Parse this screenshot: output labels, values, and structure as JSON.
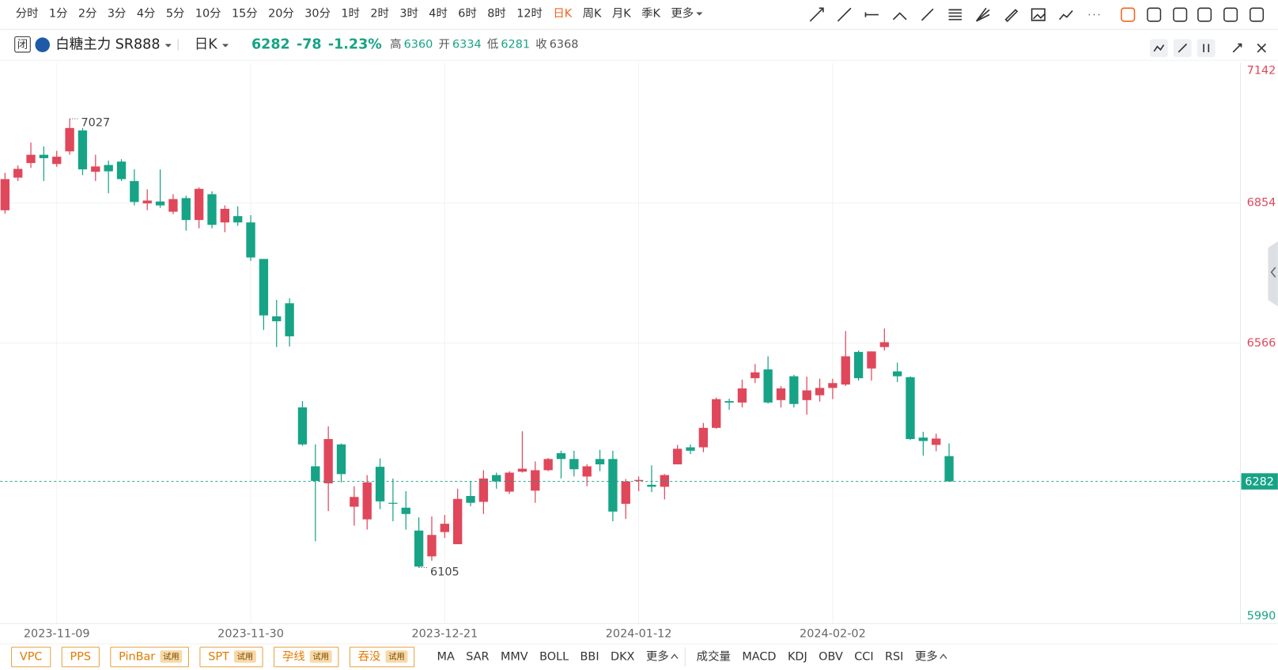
{
  "toolbar": {
    "periods": [
      "分时",
      "1分",
      "2分",
      "3分",
      "4分",
      "5分",
      "10分",
      "15分",
      "20分",
      "30分",
      "1时",
      "2时",
      "3时",
      "4时",
      "6时",
      "8时",
      "12时",
      "日K",
      "周K",
      "月K",
      "季K"
    ],
    "active": 17,
    "more": "更多"
  },
  "header": {
    "status": "闭",
    "symbol": "白糖主力 SR888",
    "period": "日K",
    "change": "-78",
    "pct": "-1.23%",
    "high_label": "高",
    "open_label": "开",
    "low_label": "低",
    "prev_label": "收",
    "prev_close": "6368"
  },
  "chart_data": {
    "type": "candlestick",
    "up_color": "#e0475a",
    "down_color": "#17a386",
    "categories": [
      null,
      null,
      null,
      null,
      "2023-11-09",
      null,
      null,
      null,
      null,
      null,
      null,
      null,
      null,
      null,
      null,
      null,
      null,
      null,
      null,
      "2023-11-30",
      null,
      null,
      null,
      null,
      null,
      null,
      null,
      null,
      null,
      null,
      null,
      null,
      null,
      null,
      "2023-12-21",
      null,
      null,
      null,
      null,
      null,
      null,
      null,
      null,
      null,
      null,
      null,
      null,
      null,
      null,
      "2024-01-12",
      null,
      null,
      null,
      null,
      null,
      null,
      null,
      null,
      null,
      null,
      null,
      null,
      null,
      null,
      "2024-02-02",
      null,
      null,
      null,
      null,
      null,
      null,
      null,
      null,
      null
    ],
    "open": [
      6839,
      6906,
      6936,
      6953,
      6934,
      6960,
      7003,
      6918,
      6932,
      6939,
      6899,
      6853,
      6857,
      6836,
      6864,
      6819,
      6872,
      6814,
      6827,
      6814,
      6739,
      6621,
      6648,
      6434,
      6313,
      6278,
      6358,
      6230,
      6204,
      6312,
      6238,
      6228,
      6181,
      6128,
      6178,
      6153,
      6252,
      6240,
      6295,
      6261,
      6302,
      6263,
      6305,
      6340,
      6328,
      6292,
      6328,
      6328,
      6236,
      6283,
      6275,
      6271,
      6317,
      6352,
      6352,
      6392,
      6447,
      6444,
      6494,
      6512,
      6449,
      6498,
      6449,
      6459,
      6474,
      6481,
      6548,
      6514,
      6558,
      6508,
      6496,
      6372,
      6357,
      6334
    ],
    "high": [
      6916,
      6931,
      6978,
      6970,
      6961,
      7027,
      7008,
      6953,
      6941,
      6944,
      6923,
      6882,
      6923,
      6872,
      6869,
      6886,
      6878,
      6849,
      6847,
      6829,
      6739,
      6655,
      6658,
      6447,
      6358,
      6395,
      6360,
      6272,
      6295,
      6329,
      6288,
      6262,
      6208,
      6210,
      6213,
      6267,
      6283,
      6305,
      6300,
      6303,
      6385,
      6323,
      6330,
      6345,
      6345,
      6317,
      6347,
      6345,
      6287,
      6292,
      6315,
      6297,
      6357,
      6358,
      6402,
      6454,
      6452,
      6491,
      6523,
      6539,
      6478,
      6501,
      6497,
      6493,
      6493,
      6591,
      6551,
      6549,
      6596,
      6526,
      6498,
      6384,
      6380,
      6360
    ],
    "low": [
      6832,
      6899,
      6926,
      6899,
      6928,
      6953,
      6911,
      6899,
      6874,
      6899,
      6849,
      6839,
      6844,
      6831,
      6797,
      6802,
      6802,
      6794,
      6807,
      6735,
      6593,
      6558,
      6559,
      6355,
      6159,
      6221,
      6280,
      6191,
      6183,
      6225,
      6200,
      6183,
      6105,
      6119,
      6166,
      6153,
      6231,
      6215,
      6267,
      6256,
      6300,
      6238,
      6303,
      6288,
      6292,
      6272,
      6303,
      6200,
      6205,
      6262,
      6260,
      6245,
      6317,
      6338,
      6342,
      6390,
      6429,
      6434,
      6484,
      6442,
      6434,
      6434,
      6419,
      6446,
      6451,
      6478,
      6489,
      6489,
      6551,
      6486,
      6367,
      6335,
      6344,
      6281
    ],
    "close": [
      6903,
      6924,
      6953,
      6946,
      6949,
      7008,
      6923,
      6929,
      6919,
      6903,
      6856,
      6859,
      6849,
      6862,
      6819,
      6883,
      6809,
      6842,
      6814,
      6742,
      6623,
      6611,
      6580,
      6358,
      6283,
      6369,
      6297,
      6250,
      6280,
      6241,
      6236,
      6215,
      6107,
      6172,
      6195,
      6246,
      6238,
      6288,
      6282,
      6300,
      6308,
      6305,
      6328,
      6328,
      6307,
      6313,
      6317,
      6220,
      6282,
      6285,
      6271,
      6295,
      6349,
      6345,
      6392,
      6451,
      6444,
      6473,
      6506,
      6444,
      6473,
      6441,
      6469,
      6474,
      6484,
      6539,
      6494,
      6549,
      6568,
      6498,
      6369,
      6365,
      6370,
      6282
    ],
    "ylim": [
      5990,
      7142
    ],
    "yticks": [
      5990,
      6566,
      6854,
      7142
    ],
    "grid": true,
    "max_index": 5,
    "min_index": 32
  },
  "footer": {
    "patterns": [
      {
        "name": "VPC"
      },
      {
        "name": "PPS"
      },
      {
        "name": "PinBar",
        "badge": "试用"
      },
      {
        "name": "SPT",
        "badge": "试用"
      },
      {
        "name": "孕线",
        "badge": "试用"
      },
      {
        "name": "吞没",
        "badge": "试用"
      }
    ],
    "main_indicators": [
      "MA",
      "SAR",
      "MMV",
      "BOLL",
      "BBI",
      "DKX"
    ],
    "sub_indicators": [
      "成交量",
      "MACD",
      "KDJ",
      "OBV",
      "CCI",
      "RSI"
    ]
  }
}
